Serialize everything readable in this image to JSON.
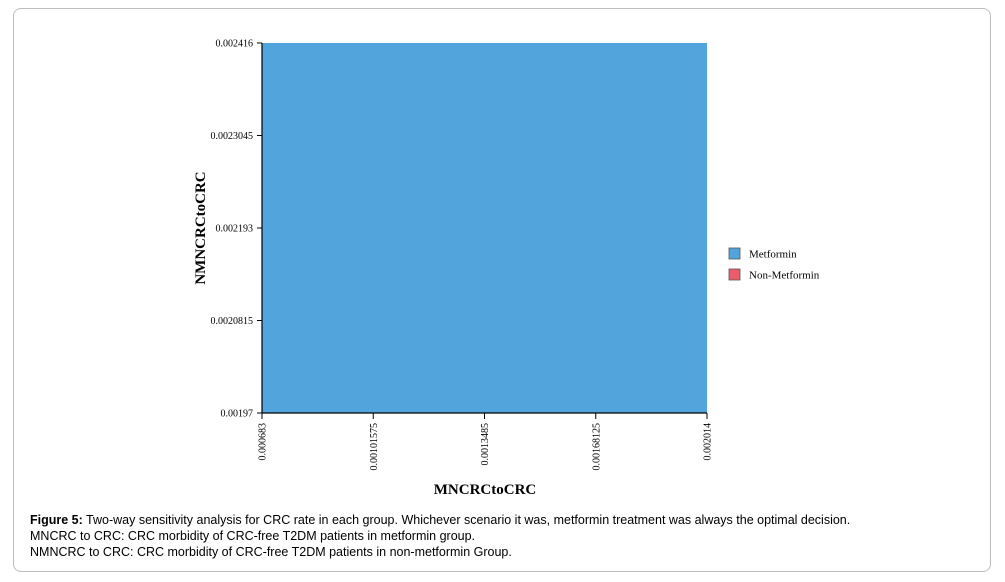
{
  "chart_data": {
    "type": "area",
    "xlabel": "MNCRCtoCRC",
    "ylabel": "NMNCRCtoCRC",
    "x_ticks": [
      "0.000683",
      "0.00101575",
      "0.0013485",
      "0.00168125",
      "0.002014"
    ],
    "y_ticks": [
      "0.00197",
      "0.0020815",
      "0.002193",
      "0.0023045",
      "0.002416"
    ],
    "xlim": [
      0.000683,
      0.002014
    ],
    "ylim": [
      0.00197,
      0.002416
    ],
    "series": [
      {
        "name": "Metformin",
        "color": "#52a5dc",
        "region": {
          "x": [
            0.000683,
            0.002014
          ],
          "y": [
            0.00197,
            0.002416
          ]
        }
      },
      {
        "name": "Non-Metformin",
        "color": "#ec5d6c",
        "region": null
      }
    ],
    "legend_position": "right",
    "grid": false
  },
  "caption": {
    "label": "Figure 5:",
    "text": " Two-way sensitivity analysis for CRC rate in each group. Whichever scenario it was, metformin treatment was always the optimal decision.",
    "line2": "MNCRC to CRC: CRC morbidity of CRC-free T2DM patients in metformin group.",
    "line3": "NMNCRC to CRC: CRC morbidity of CRC-free T2DM patients in non-metformin Group."
  }
}
